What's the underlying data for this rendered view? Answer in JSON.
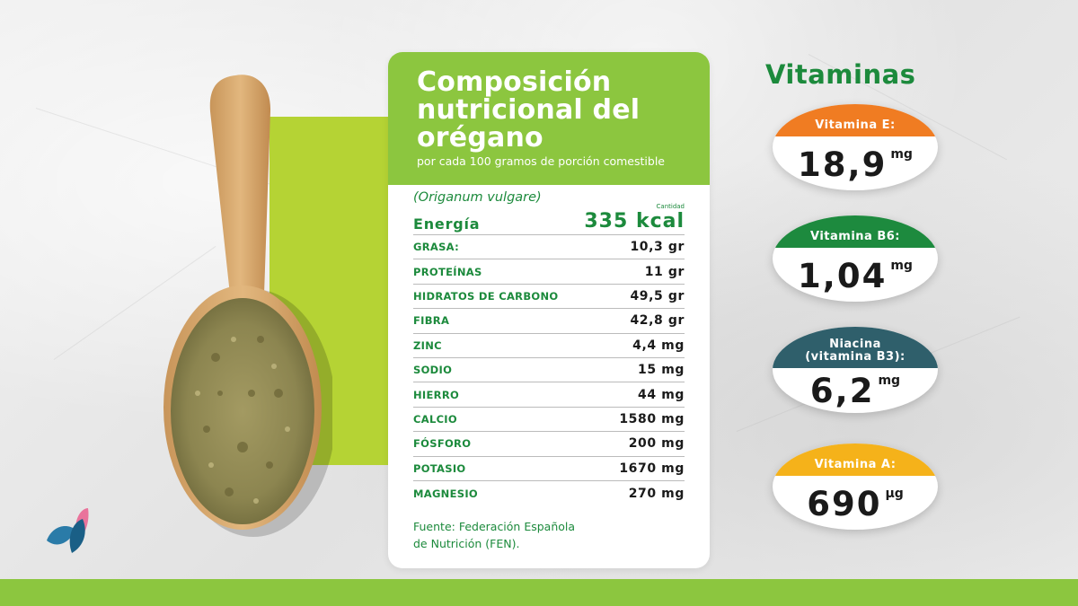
{
  "card": {
    "title_line1": "Composición",
    "title_line2": "nutricional del",
    "title_line3": "orégano",
    "subtitle": "por cada 100 gramos de porción comestible",
    "species": "(Origanum vulgare)",
    "quantity_label": "Cantidad",
    "energy_label": "Energía",
    "energy_value": "335 kcal",
    "rows": [
      {
        "label": "GRASA:",
        "value": "10,3 gr"
      },
      {
        "label": "PROTEÍNAS",
        "value": "11 gr"
      },
      {
        "label": "HIDRATOS DE CARBONO",
        "value": "49,5 gr"
      },
      {
        "label": "FIBRA",
        "value": "42,8 gr"
      },
      {
        "label": "ZINC",
        "value": "4,4 mg"
      },
      {
        "label": "SODIO",
        "value": "15 mg"
      },
      {
        "label": "HIERRO",
        "value": "44 mg"
      },
      {
        "label": "CALCIO",
        "value": "1580 mg"
      },
      {
        "label": "FÓSFORO",
        "value": "200 mg"
      },
      {
        "label": "POTASIO",
        "value": "1670 mg"
      },
      {
        "label": "MAGNESIO",
        "value": "270 mg"
      }
    ],
    "source_line1": "Fuente: Federación Española",
    "source_line2": "de Nutrición (FEN)."
  },
  "vitamins": {
    "title": "Vitaminas",
    "items": [
      {
        "label": "Vitamina E:",
        "value": "18,9",
        "unit": "mg",
        "color": "#f07c22"
      },
      {
        "label": "Vitamina B6:",
        "value": "1,04",
        "unit": "mg",
        "color": "#1d8a3e"
      },
      {
        "label_line1": "Niacina",
        "label_line2": "(vitamina B3):",
        "value": "6,2",
        "unit": "mg",
        "color": "#2f5f6b"
      },
      {
        "label": "Vitamina A:",
        "value": "690",
        "unit": "µg",
        "color": "#f5b21a"
      }
    ]
  },
  "colors": {
    "brand_green": "#8cc63f",
    "dark_green": "#1c8a3c",
    "lime": "#b5d334"
  },
  "icons": {
    "logo": "leaf-petals-logo-icon",
    "spoon": "wooden-spoon-oregano-image"
  }
}
